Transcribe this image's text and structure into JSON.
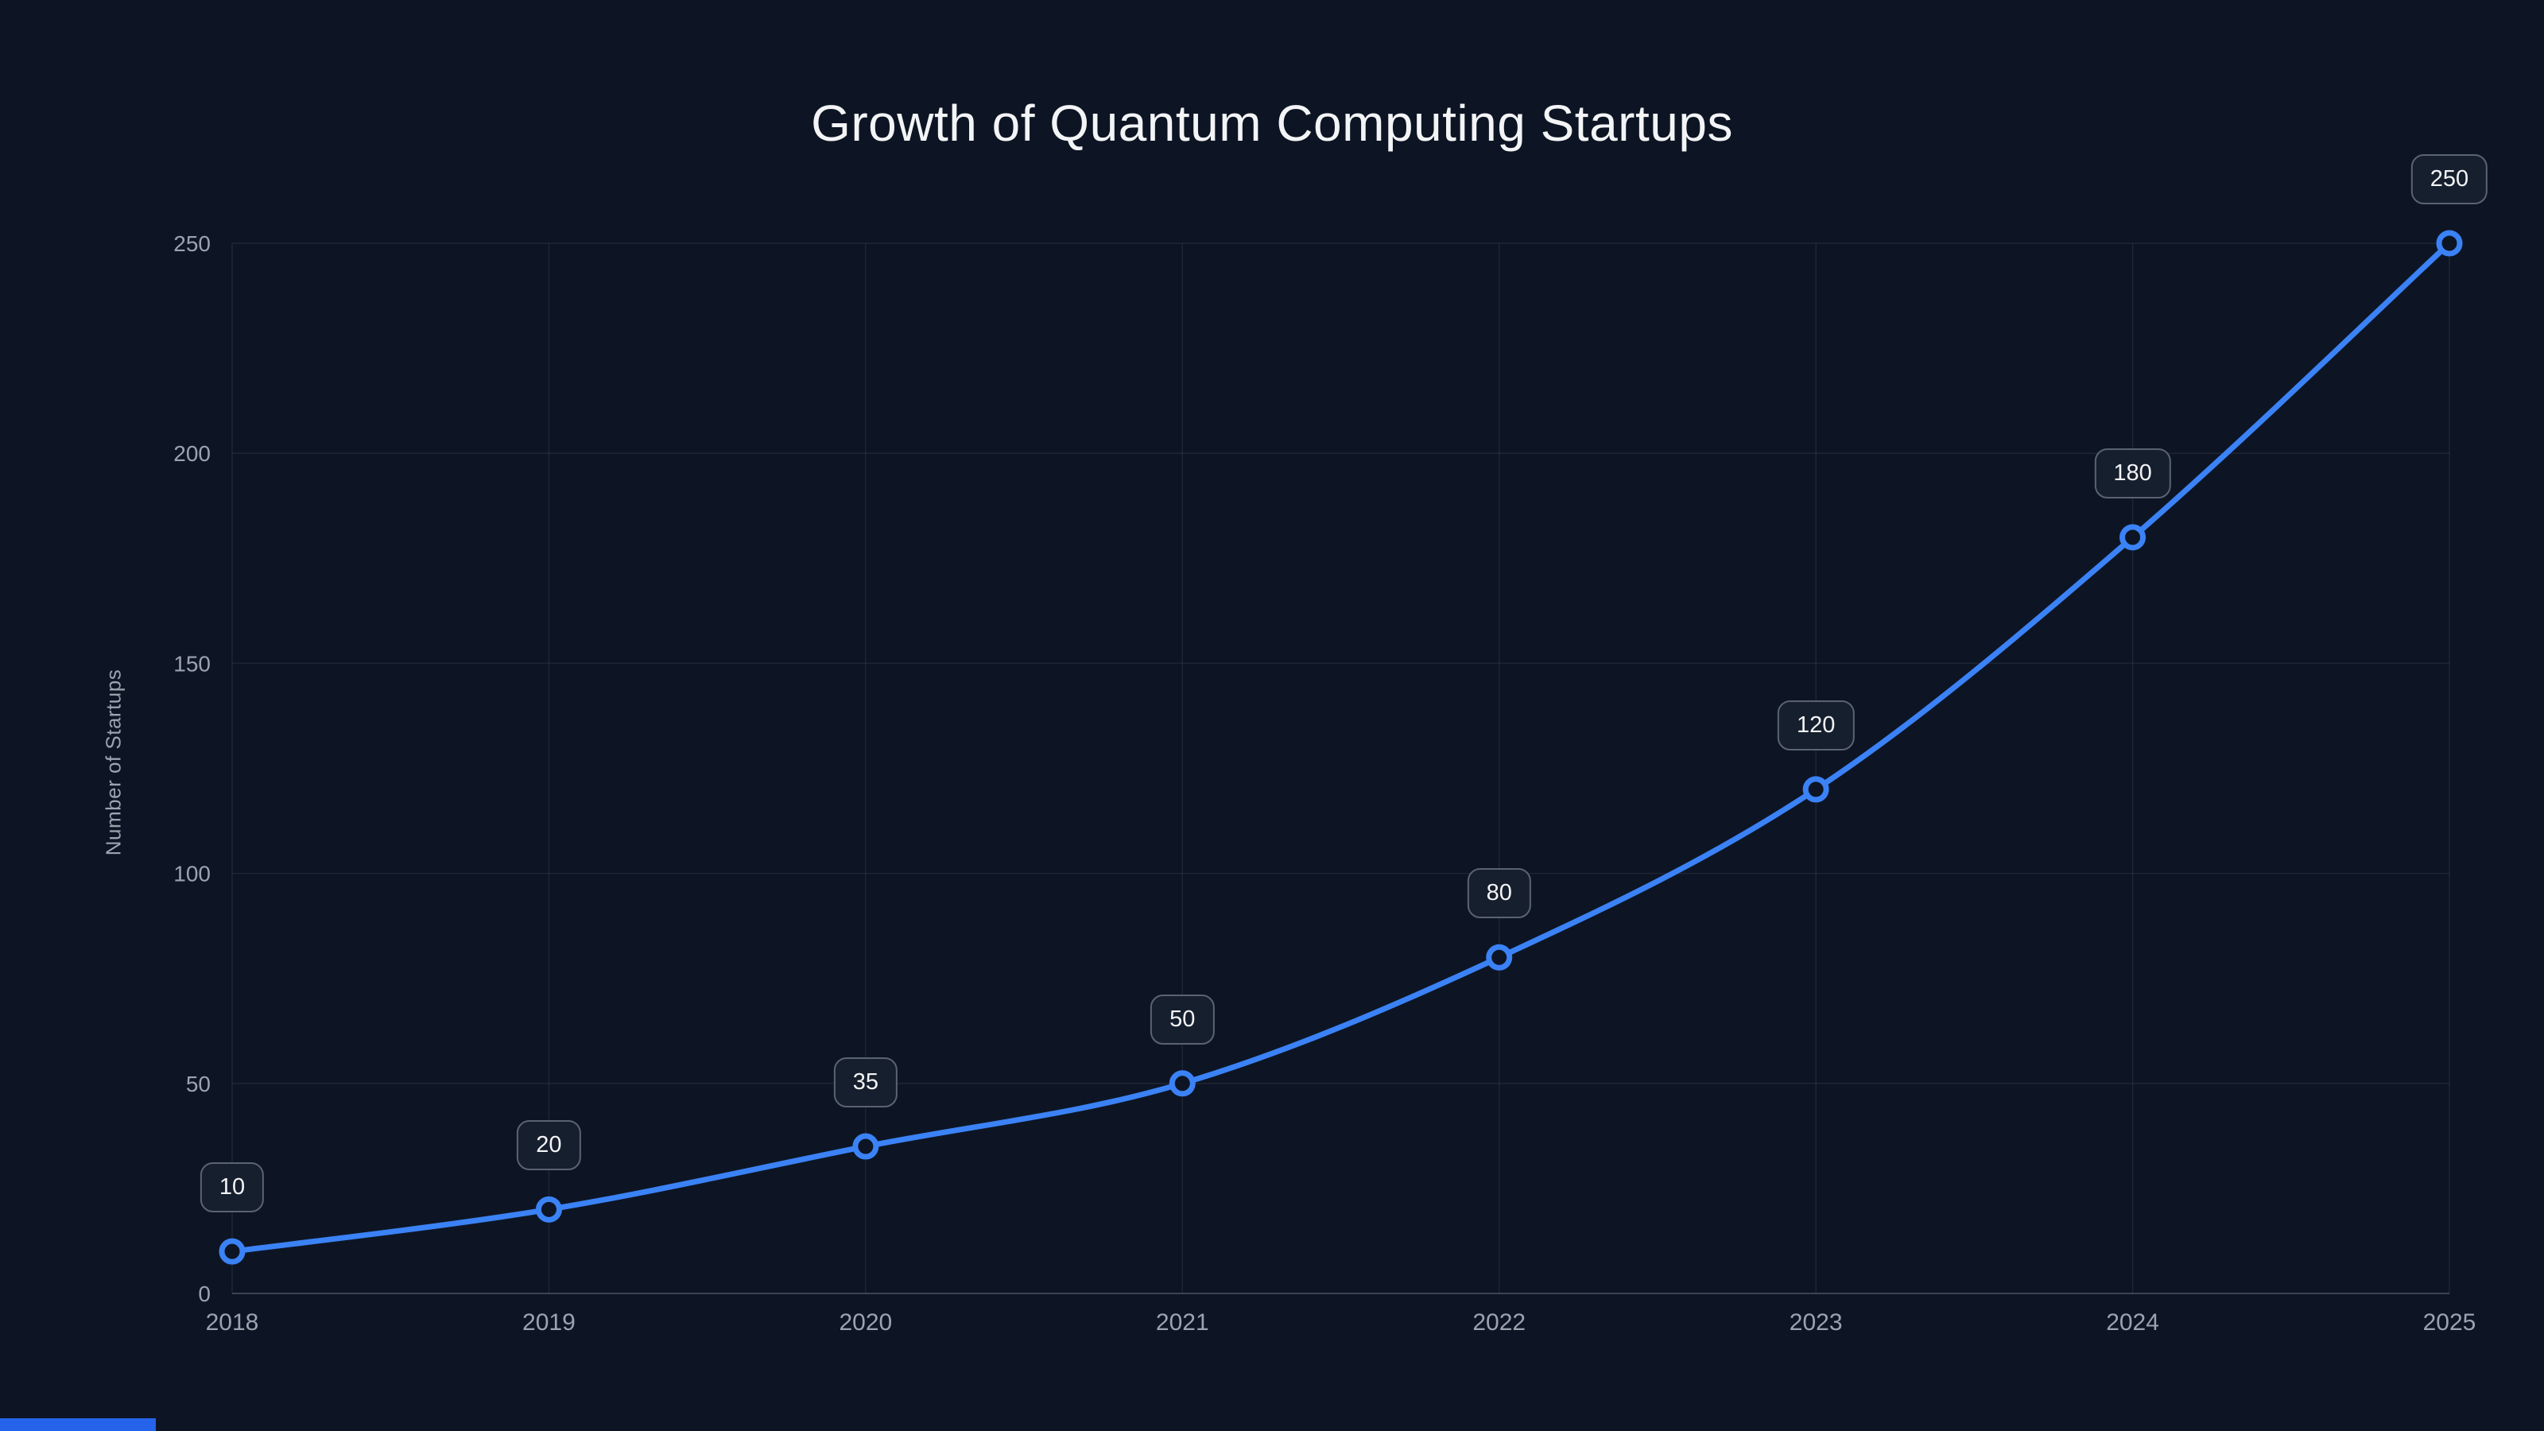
{
  "chart_data": {
    "type": "line",
    "title": "Growth of Quantum Computing Startups",
    "ylabel": "Number of Startups",
    "xlabel": "",
    "x": [
      "2018",
      "2019",
      "2020",
      "2021",
      "2022",
      "2023",
      "2024",
      "2025"
    ],
    "values": [
      10,
      20,
      35,
      50,
      80,
      120,
      180,
      250
    ],
    "point_labels": [
      "10",
      "20",
      "35",
      "50",
      "80",
      "120",
      "180",
      "250"
    ],
    "ylim": [
      0,
      250
    ],
    "yticks": [
      0,
      50,
      100,
      150,
      200,
      250
    ],
    "grid": true,
    "legend": "none",
    "colors": {
      "background": "#0d1524",
      "line": "#3b82f6",
      "point_fill": "#0d1524",
      "label_box_bg": "#161f2e",
      "label_box_border": "#5a6372",
      "text": "#f3f4f6",
      "muted_text": "#9ca3af",
      "bottom_accent": "#2563eb"
    }
  }
}
